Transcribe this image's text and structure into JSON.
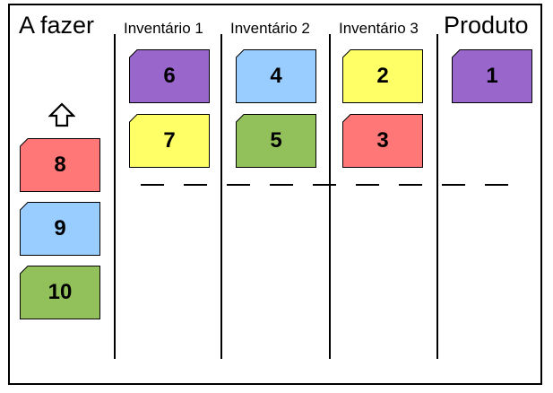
{
  "columns": [
    {
      "id": "todo",
      "title": "A fazer"
    },
    {
      "id": "inv1",
      "title": "Inventário 1"
    },
    {
      "id": "inv2",
      "title": "Inventário 2"
    },
    {
      "id": "inv3",
      "title": "Inventário 3"
    },
    {
      "id": "product",
      "title": "Produto"
    }
  ],
  "cards": [
    {
      "column": "todo",
      "number": "8",
      "color": "#ff7777"
    },
    {
      "column": "todo",
      "number": "9",
      "color": "#99ccff"
    },
    {
      "column": "todo",
      "number": "10",
      "color": "#92c05a"
    },
    {
      "column": "inv1",
      "number": "6",
      "color": "#9966cc"
    },
    {
      "column": "inv1",
      "number": "7",
      "color": "#ffff66"
    },
    {
      "column": "inv2",
      "number": "4",
      "color": "#99ccff"
    },
    {
      "column": "inv2",
      "number": "5",
      "color": "#92c05a"
    },
    {
      "column": "inv3",
      "number": "2",
      "color": "#ffff66"
    },
    {
      "column": "inv3",
      "number": "3",
      "color": "#ff7777"
    },
    {
      "column": "product",
      "number": "1",
      "color": "#9966cc"
    }
  ],
  "icons": {
    "pull_arrow": "up-arrow-icon"
  },
  "line_style": {
    "limit_line": "dashed"
  }
}
